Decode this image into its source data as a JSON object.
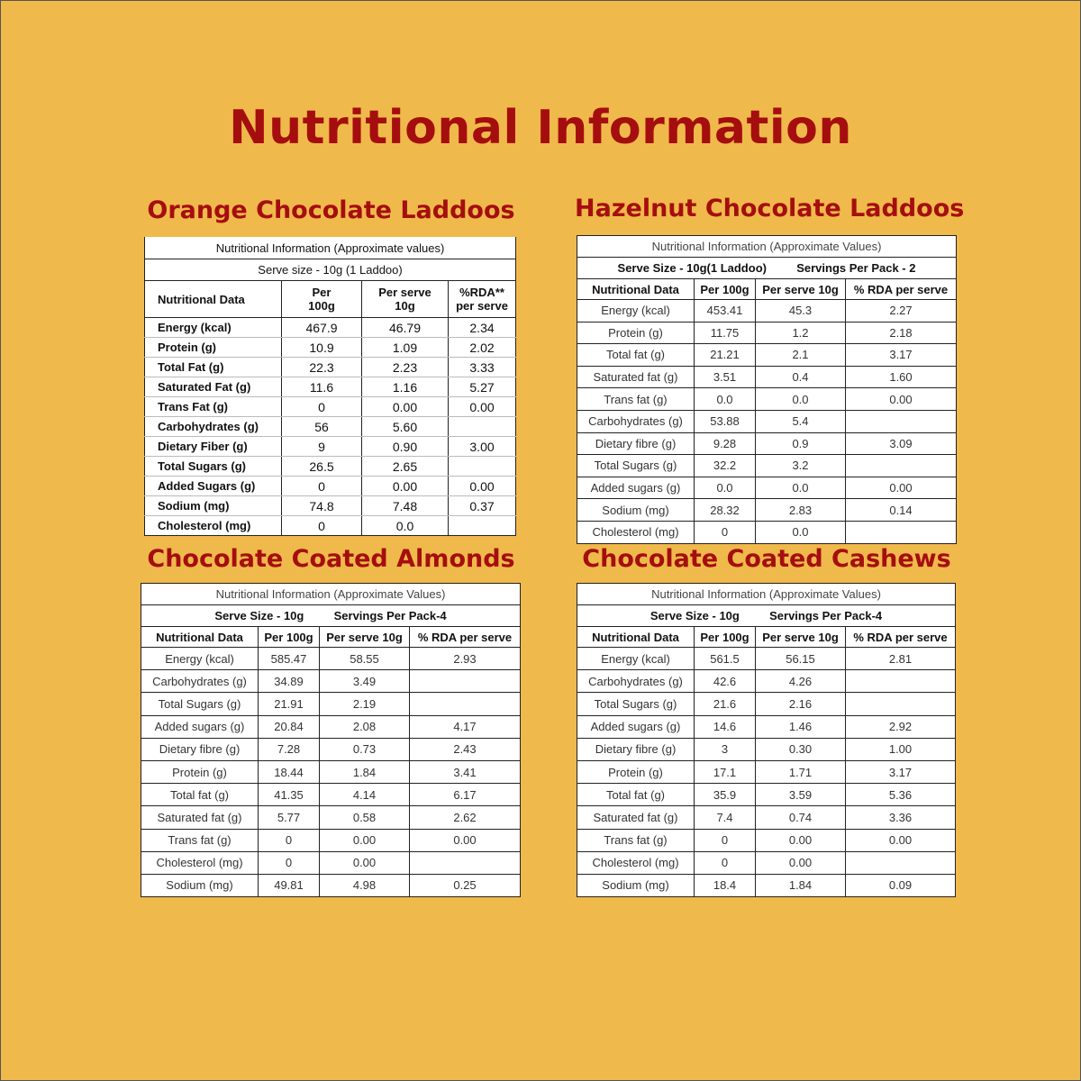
{
  "title": "Nutritional Information",
  "tables": [
    {
      "name": "Orange Chocolate Laddoos",
      "caption": "Nutritional Information (Approximate values)",
      "serve": "Serve size - 10g (1 Laddoo)",
      "headers": [
        "Nutritional Data",
        "Per 100g",
        "Per serve 10g",
        "%RDA** per serve"
      ],
      "rows": [
        [
          "Energy (kcal)",
          "467.9",
          "46.79",
          "2.34"
        ],
        [
          "Protein (g)",
          "10.9",
          "1.09",
          "2.02"
        ],
        [
          "Total Fat (g)",
          "22.3",
          "2.23",
          "3.33"
        ],
        [
          "Saturated Fat (g)",
          "11.6",
          "1.16",
          "5.27"
        ],
        [
          "Trans Fat (g)",
          "0",
          "0.00",
          "0.00"
        ],
        [
          "Carbohydrates (g)",
          "56",
          "5.60",
          ""
        ],
        [
          "Dietary Fiber (g)",
          "9",
          "0.90",
          "3.00"
        ],
        [
          "Total Sugars (g)",
          "26.5",
          "2.65",
          ""
        ],
        [
          "Added Sugars (g)",
          "0",
          "0.00",
          "0.00"
        ],
        [
          "Sodium (mg)",
          "74.8",
          "7.48",
          "0.37"
        ],
        [
          "Cholesterol (mg)",
          "0",
          "0.0",
          ""
        ]
      ]
    },
    {
      "name": "Hazelnut Chocolate Laddoos",
      "caption": "Nutritional Information (Approximate Values)",
      "serve": "Serve Size - 10g(1 Laddoo)",
      "servings": "Servings Per Pack - 2",
      "headers": [
        "Nutritional Data",
        "Per 100g",
        "Per serve 10g",
        "% RDA per serve"
      ],
      "rows": [
        [
          "Energy (kcal)",
          "453.41",
          "45.3",
          "2.27"
        ],
        [
          "Protein (g)",
          "11.75",
          "1.2",
          "2.18"
        ],
        [
          "Total fat (g)",
          "21.21",
          "2.1",
          "3.17"
        ],
        [
          "Saturated fat (g)",
          "3.51",
          "0.4",
          "1.60"
        ],
        [
          "Trans fat (g)",
          "0.0",
          "0.0",
          "0.00"
        ],
        [
          "Carbohydrates (g)",
          "53.88",
          "5.4",
          ""
        ],
        [
          "Dietary fibre (g)",
          "9.28",
          "0.9",
          "3.09"
        ],
        [
          "Total Sugars (g)",
          "32.2",
          "3.2",
          ""
        ],
        [
          "Added sugars (g)",
          "0.0",
          "0.0",
          "0.00"
        ],
        [
          "Sodium (mg)",
          "28.32",
          "2.83",
          "0.14"
        ],
        [
          "Cholesterol (mg)",
          "0",
          "0.0",
          ""
        ]
      ]
    },
    {
      "name": "Chocolate Coated Almonds",
      "caption": "Nutritional Information (Approximate Values)",
      "serve": "Serve Size - 10g",
      "servings": "Servings Per Pack-4",
      "headers": [
        "Nutritional Data",
        "Per 100g",
        "Per serve 10g",
        "% RDA per serve"
      ],
      "rows": [
        [
          "Energy (kcal)",
          "585.47",
          "58.55",
          "2.93"
        ],
        [
          "Carbohydrates (g)",
          "34.89",
          "3.49",
          ""
        ],
        [
          "Total Sugars (g)",
          "21.91",
          "2.19",
          ""
        ],
        [
          "Added sugars (g)",
          "20.84",
          "2.08",
          "4.17"
        ],
        [
          "Dietary fibre (g)",
          "7.28",
          "0.73",
          "2.43"
        ],
        [
          "Protein (g)",
          "18.44",
          "1.84",
          "3.41"
        ],
        [
          "Total fat (g)",
          "41.35",
          "4.14",
          "6.17"
        ],
        [
          "Saturated fat (g)",
          "5.77",
          "0.58",
          "2.62"
        ],
        [
          "Trans fat (g)",
          "0",
          "0.00",
          "0.00"
        ],
        [
          "Cholesterol (mg)",
          "0",
          "0.00",
          ""
        ],
        [
          "Sodium (mg)",
          "49.81",
          "4.98",
          "0.25"
        ]
      ]
    },
    {
      "name": "Chocolate Coated Cashews",
      "caption": "Nutritional Information (Approximate Values)",
      "serve": "Serve Size - 10g",
      "servings": "Servings Per Pack-4",
      "headers": [
        "Nutritional Data",
        "Per 100g",
        "Per serve 10g",
        "% RDA per serve"
      ],
      "rows": [
        [
          "Energy (kcal)",
          "561.5",
          "56.15",
          "2.81"
        ],
        [
          "Carbohydrates (g)",
          "42.6",
          "4.26",
          ""
        ],
        [
          "Total Sugars (g)",
          "21.6",
          "2.16",
          ""
        ],
        [
          "Added sugars (g)",
          "14.6",
          "1.46",
          "2.92"
        ],
        [
          "Dietary fibre (g)",
          "3",
          "0.30",
          "1.00"
        ],
        [
          "Protein (g)",
          "17.1",
          "1.71",
          "3.17"
        ],
        [
          "Total fat (g)",
          "35.9",
          "3.59",
          "5.36"
        ],
        [
          "Saturated fat (g)",
          "7.4",
          "0.74",
          "3.36"
        ],
        [
          "Trans fat (g)",
          "0",
          "0.00",
          "0.00"
        ],
        [
          "Cholesterol (mg)",
          "0",
          "0.00",
          ""
        ],
        [
          "Sodium (mg)",
          "18.4",
          "1.84",
          "0.09"
        ]
      ]
    }
  ]
}
